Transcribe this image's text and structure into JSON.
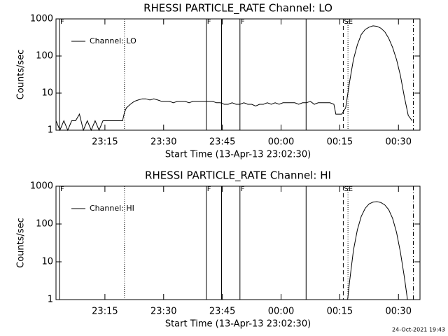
{
  "chart_data": [
    {
      "type": "line",
      "title": "RHESSI PARTICLE_RATE Channel: LO",
      "xlabel": "Start Time (13-Apr-13 23:02:30)",
      "ylabel": "Counts/sec",
      "xlim": [
        0,
        93
      ],
      "xticks": [
        {
          "value": 12.5,
          "label": "23:15"
        },
        {
          "value": 27.5,
          "label": "23:30"
        },
        {
          "value": 42.5,
          "label": "23:45"
        },
        {
          "value": 57.5,
          "label": "00:00"
        },
        {
          "value": 72.5,
          "label": "00:15"
        },
        {
          "value": 87.5,
          "label": "00:30"
        }
      ],
      "ylim": [
        1,
        1000
      ],
      "yticks": [
        1,
        10,
        100,
        1000
      ],
      "log_y": true,
      "legend": "upper left",
      "markers": [
        {
          "x": 0.9,
          "style": "solid",
          "label": "F"
        },
        {
          "x": 17.5,
          "style": "dotted"
        },
        {
          "x": 38.4,
          "style": "solid",
          "label": "F"
        },
        {
          "x": 42.3,
          "style": "solid"
        },
        {
          "x": 47,
          "style": "solid",
          "label": "F"
        },
        {
          "x": 63.9,
          "style": "solid"
        },
        {
          "x": 73.4,
          "style": "dashed",
          "label": "SE"
        },
        {
          "x": 74.6,
          "style": "dotted"
        },
        {
          "x": 91.3,
          "style": "dashdot"
        }
      ],
      "series": [
        {
          "name": "Channel: LO",
          "color": "#000000",
          "x": [
            0,
            1,
            2,
            3,
            4,
            5,
            6,
            7,
            8,
            9,
            10,
            11,
            12,
            13,
            14,
            15,
            16,
            17,
            17.5,
            18,
            19,
            20,
            21,
            22,
            23,
            24,
            25,
            26,
            27,
            28,
            29,
            30,
            31,
            32,
            33,
            34,
            35,
            36,
            37,
            38,
            39,
            40,
            41,
            42,
            43,
            44,
            45,
            46,
            47,
            48,
            49,
            50,
            51,
            52,
            53,
            54,
            55,
            56,
            57,
            58,
            59,
            60,
            61,
            62,
            63,
            64,
            65,
            66,
            67,
            68,
            69,
            70,
            71,
            71.5,
            73,
            74,
            75,
            76,
            77,
            78,
            79,
            80,
            81,
            82,
            83,
            84,
            85,
            86,
            87,
            88,
            89,
            90,
            91
          ],
          "values": [
            1.8,
            1,
            1.8,
            1,
            1.8,
            1.8,
            2.7,
            1,
            1.8,
            1,
            1.8,
            1,
            1.8,
            1.8,
            1.8,
            1.8,
            1.8,
            1.8,
            3,
            4,
            5,
            6,
            6.5,
            7,
            7,
            6.5,
            7,
            6.5,
            6,
            6,
            6,
            5.5,
            6,
            6,
            6,
            5.5,
            6,
            6,
            6,
            6,
            6,
            6,
            5.5,
            5.5,
            5,
            5,
            5.5,
            5,
            5,
            5.5,
            5,
            5,
            4.5,
            5,
            5,
            5.5,
            5,
            5.5,
            5,
            5.5,
            5.5,
            5.5,
            5.5,
            5,
            5.5,
            5.5,
            6,
            5,
            5.5,
            5.5,
            5.5,
            5.5,
            5,
            2.7,
            2.7,
            4,
            20,
            80,
            200,
            380,
            520,
            600,
            650,
            630,
            560,
            450,
            300,
            170,
            80,
            30,
            8,
            2.5,
            1.8
          ]
        }
      ]
    },
    {
      "type": "line",
      "title": "RHESSI PARTICLE_RATE Channel: HI",
      "xlabel": "Start Time (13-Apr-13 23:02:30)",
      "ylabel": "Counts/sec",
      "xlim": [
        0,
        93
      ],
      "xticks": [
        {
          "value": 12.5,
          "label": "23:15"
        },
        {
          "value": 27.5,
          "label": "23:30"
        },
        {
          "value": 42.5,
          "label": "23:45"
        },
        {
          "value": 57.5,
          "label": "00:00"
        },
        {
          "value": 72.5,
          "label": "00:15"
        },
        {
          "value": 87.5,
          "label": "00:30"
        }
      ],
      "ylim": [
        1,
        1000
      ],
      "yticks": [
        1,
        10,
        100,
        1000
      ],
      "log_y": true,
      "legend": "upper left",
      "markers": [
        {
          "x": 0.9,
          "style": "solid",
          "label": "F"
        },
        {
          "x": 17.5,
          "style": "dotted"
        },
        {
          "x": 38.4,
          "style": "solid",
          "label": "F"
        },
        {
          "x": 42.3,
          "style": "solid"
        },
        {
          "x": 47,
          "style": "solid",
          "label": "F"
        },
        {
          "x": 63.9,
          "style": "solid"
        },
        {
          "x": 73.4,
          "style": "dashed",
          "label": "SE"
        },
        {
          "x": 74.6,
          "style": "dotted"
        },
        {
          "x": 91.3,
          "style": "dashdot"
        }
      ],
      "series": [
        {
          "name": "Channel: HI",
          "color": "#000000",
          "x": [
            74.5,
            75,
            76,
            77,
            78,
            79,
            80,
            81,
            82,
            83,
            84,
            85,
            86,
            87,
            88,
            89,
            89.8
          ],
          "values": [
            1,
            3,
            20,
            70,
            160,
            260,
            340,
            380,
            390,
            370,
            320,
            240,
            140,
            60,
            18,
            4,
            1
          ]
        }
      ]
    }
  ],
  "footer": "24-Oct-2021 19:43"
}
